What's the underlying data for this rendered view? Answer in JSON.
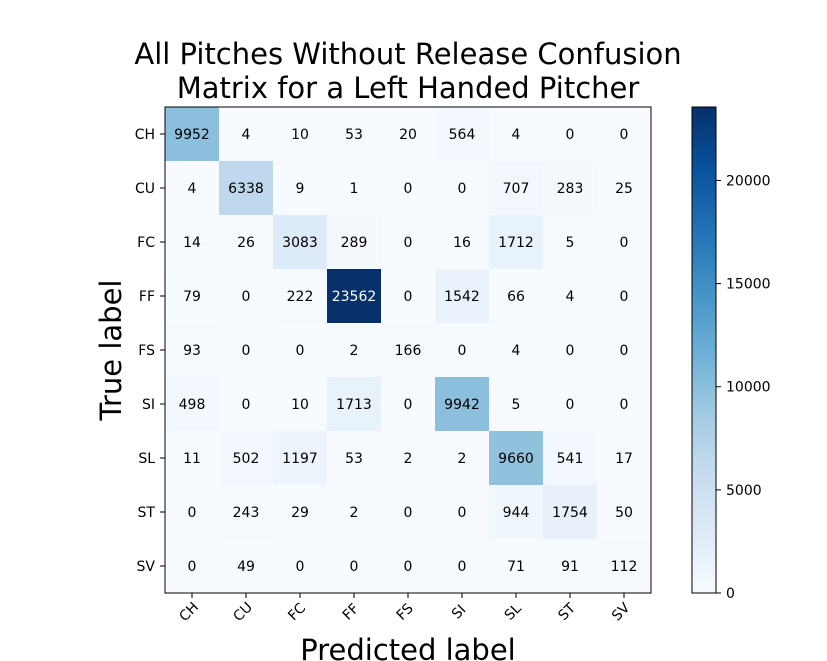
{
  "chart_data": {
    "type": "heatmap",
    "title_lines": [
      "All Pitches Without Release Confusion",
      "Matrix for a Left Handed Pitcher"
    ],
    "xlabel": "Predicted label",
    "ylabel": "True label",
    "x_categories": [
      "CH",
      "CU",
      "FC",
      "FF",
      "FS",
      "SI",
      "SL",
      "ST",
      "SV"
    ],
    "y_categories": [
      "CH",
      "CU",
      "FC",
      "FF",
      "FS",
      "SI",
      "SL",
      "ST",
      "SV"
    ],
    "matrix": [
      [
        9952,
        4,
        10,
        53,
        20,
        564,
        4,
        0,
        0
      ],
      [
        4,
        6338,
        9,
        1,
        0,
        0,
        707,
        283,
        25
      ],
      [
        14,
        26,
        3083,
        289,
        0,
        16,
        1712,
        5,
        0
      ],
      [
        79,
        0,
        222,
        23562,
        0,
        1542,
        66,
        4,
        0
      ],
      [
        93,
        0,
        0,
        2,
        166,
        0,
        4,
        0,
        0
      ],
      [
        498,
        0,
        10,
        1713,
        0,
        9942,
        5,
        0,
        0
      ],
      [
        11,
        502,
        1197,
        53,
        2,
        2,
        9660,
        541,
        17
      ],
      [
        0,
        243,
        29,
        2,
        0,
        0,
        944,
        1754,
        50
      ],
      [
        0,
        49,
        0,
        0,
        0,
        0,
        71,
        91,
        112
      ]
    ],
    "colormap": "Blues",
    "colorbar": {
      "range": [
        0,
        23562
      ],
      "ticks": [
        0,
        5000,
        10000,
        15000,
        20000
      ],
      "tick_labels": [
        "0",
        "5000",
        "10000",
        "15000",
        "20000"
      ]
    },
    "grid": false
  }
}
